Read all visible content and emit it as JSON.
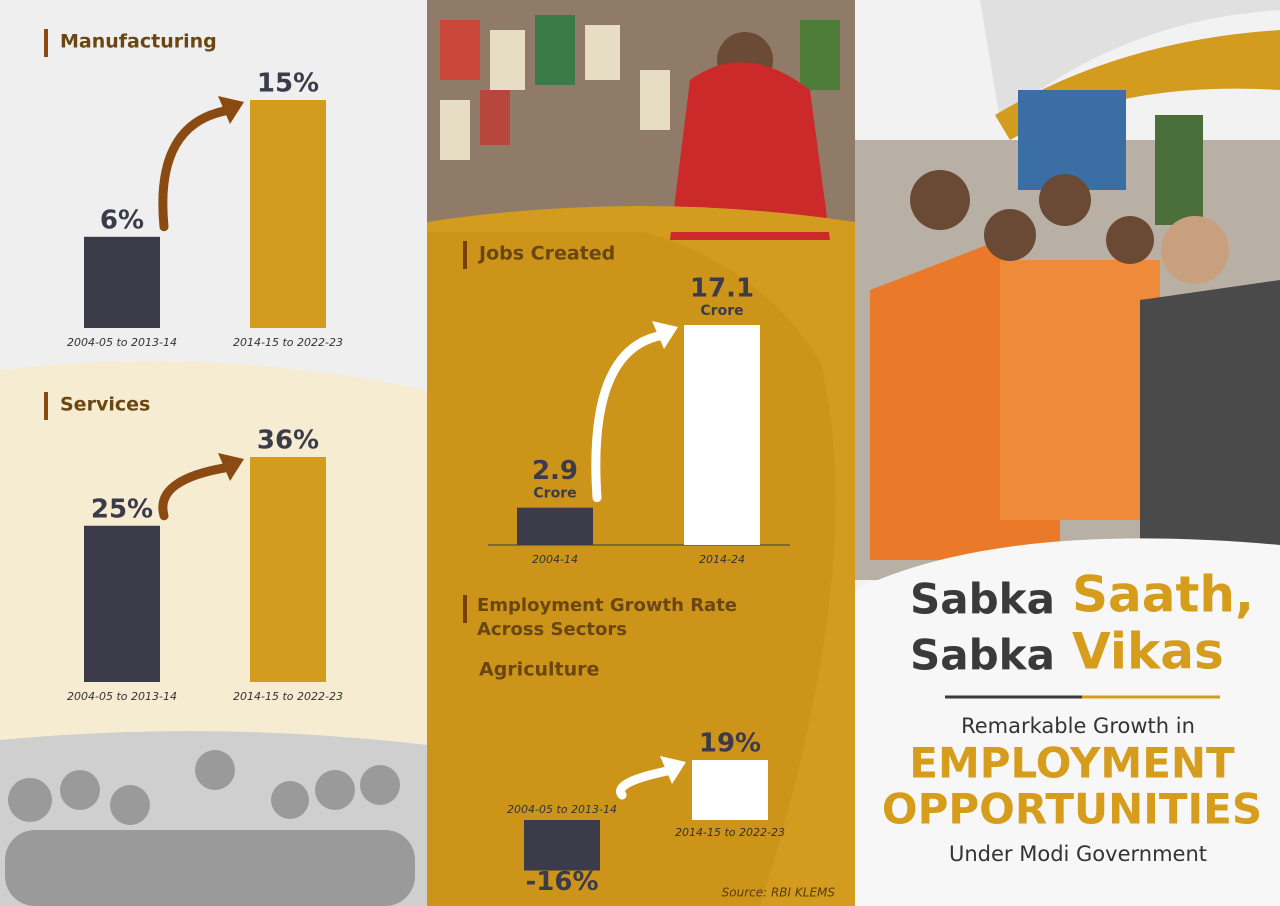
{
  "chart_data": [
    {
      "type": "bar",
      "title": "Manufacturing",
      "categories": [
        "2004-05 to 2013-14",
        "2014-15 to 2022-23"
      ],
      "values": [
        6,
        15
      ],
      "value_labels": [
        "6%",
        "15%"
      ],
      "colors": [
        "#3b3b4a",
        "#d39c1f"
      ]
    },
    {
      "type": "bar",
      "title": "Services",
      "categories": [
        "2004-05 to 2013-14",
        "2014-15 to 2022-23"
      ],
      "values": [
        25,
        36
      ],
      "value_labels": [
        "25%",
        "36%"
      ],
      "colors": [
        "#3b3b4a",
        "#d39c1f"
      ]
    },
    {
      "type": "bar",
      "title": "Jobs Created",
      "categories": [
        "2004-14",
        "2014-24"
      ],
      "values": [
        2.9,
        17.1
      ],
      "unit": "Crore",
      "colors": [
        "#3b3b4a",
        "#ffffff"
      ]
    },
    {
      "type": "bar",
      "title": "Employment Growth Rate Across Sectors",
      "subtitle": "Agriculture",
      "categories": [
        "2004-05 to 2013-14",
        "2014-15 to 2022-23"
      ],
      "values": [
        -16,
        19
      ],
      "value_labels": [
        "-16%",
        "19%"
      ],
      "colors": [
        "#3b3b4a",
        "#ffffff"
      ],
      "source": "Source: RBI KLEMS"
    }
  ],
  "poster": {
    "headline": [
      "Sabka",
      "Saath,",
      "Sabka",
      "Vikas"
    ],
    "intro": "Remarkable Growth in",
    "highlight": [
      "EMPLOYMENT",
      "OPPORTUNITIES"
    ],
    "outro": "Under Modi Government"
  }
}
